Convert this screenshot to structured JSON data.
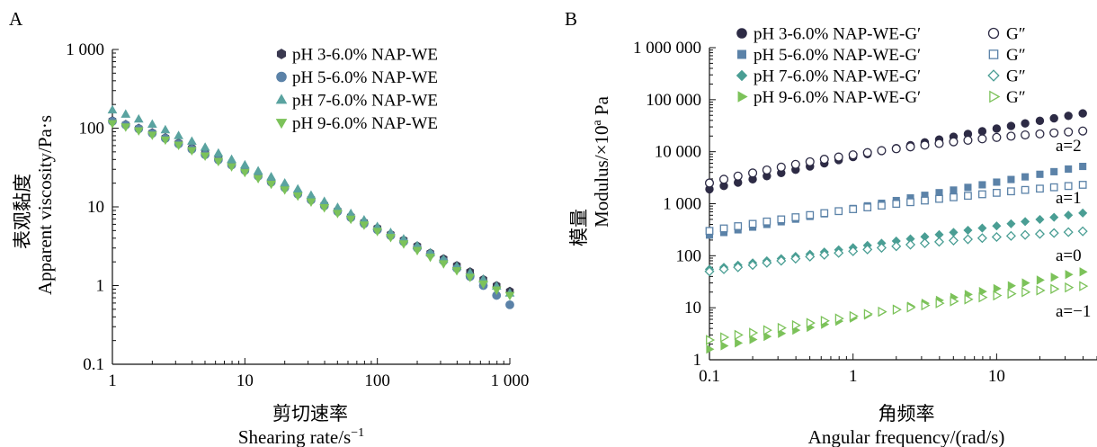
{
  "chart_data": [
    {
      "type": "scatter",
      "panel_label": "A",
      "xlabel_cn": "剪切速率",
      "xlabel": "Shearing rate/s",
      "xlabel_sup": "−1",
      "ylabel_cn": "表观黏度",
      "ylabel": "Apparent viscosity/Pa·s",
      "xscale": "log",
      "yscale": "log",
      "xlim": [
        1,
        1000
      ],
      "ylim": [
        0.1,
        1000
      ],
      "xticks": [
        1,
        10,
        100,
        1000
      ],
      "xticklabels": [
        "1",
        "10",
        "100",
        "1 000"
      ],
      "yticks": [
        0.1,
        1,
        10,
        100,
        1000
      ],
      "yticklabels": [
        "0.1",
        "1",
        "10",
        "100",
        "1 000"
      ],
      "grid": false,
      "legend_position": "top-right",
      "series": [
        {
          "name": "pH 3-6.0% NAP-WE",
          "marker": "hexagon",
          "color": "#3a3950",
          "x": [
            1,
            1.26,
            1.58,
            2,
            2.51,
            3.16,
            3.98,
            5.01,
            6.31,
            7.94,
            10,
            12.6,
            15.8,
            20,
            25.1,
            31.6,
            39.8,
            50.1,
            63.1,
            79.4,
            100,
            126,
            158,
            200,
            251,
            316,
            398,
            501,
            631,
            794,
            1000
          ],
          "y": [
            125,
            112,
            100,
            88,
            76,
            65,
            56,
            48,
            41,
            35,
            30,
            25,
            21,
            18,
            15,
            12.7,
            10.7,
            9,
            7.6,
            6.4,
            5.4,
            4.5,
            3.8,
            3.2,
            2.6,
            2.2,
            1.8,
            1.5,
            1.2,
            1.0,
            0.85
          ]
        },
        {
          "name": "pH 5-6.0% NAP-WE",
          "marker": "circle",
          "color": "#5b82a8",
          "x": [
            1,
            1.26,
            1.58,
            2,
            2.51,
            3.16,
            3.98,
            5.01,
            6.31,
            7.94,
            10,
            12.6,
            15.8,
            20,
            25.1,
            31.6,
            39.8,
            50.1,
            63.1,
            79.4,
            100,
            126,
            158,
            200,
            251,
            316,
            398,
            501,
            631,
            794,
            1000
          ],
          "y": [
            122,
            110,
            98,
            86,
            74,
            63,
            54,
            46,
            39.5,
            34,
            29,
            24.5,
            20.5,
            17.5,
            14.5,
            12.2,
            10.3,
            8.7,
            7.3,
            6.1,
            5.1,
            4.3,
            3.6,
            3.0,
            2.5,
            2.05,
            1.65,
            1.3,
            1.0,
            0.75,
            0.57
          ]
        },
        {
          "name": "pH 7-6.0% NAP-WE",
          "marker": "triangle-up",
          "color": "#5aa3a0",
          "x": [
            1,
            1.26,
            1.58,
            2,
            2.51,
            3.16,
            3.98,
            5.01,
            6.31,
            7.94,
            10,
            12.6,
            15.8,
            20,
            25.1,
            31.6,
            39.8,
            50.1,
            63.1,
            79.4,
            100,
            126,
            158,
            200,
            251,
            316,
            398,
            501,
            631,
            794,
            1000
          ],
          "y": [
            170,
            150,
            130,
            112,
            95,
            80,
            68,
            57,
            48,
            40,
            34,
            28.5,
            24,
            20,
            16.8,
            14,
            11.7,
            9.8,
            8.2,
            6.8,
            5.6,
            4.7,
            3.9,
            3.2,
            2.6,
            2.15,
            1.75,
            1.45,
            1.2,
            0.98,
            0.8
          ]
        },
        {
          "name": "pH 9-6.0% NAP-WE",
          "marker": "triangle-down",
          "color": "#7cc25a",
          "x": [
            1,
            1.26,
            1.58,
            2,
            2.51,
            3.16,
            3.98,
            5.01,
            6.31,
            7.94,
            10,
            12.6,
            15.8,
            20,
            25.1,
            31.6,
            39.8,
            50.1,
            63.1,
            79.4,
            100,
            126,
            158,
            200,
            251,
            316,
            398,
            501,
            631,
            794,
            1000
          ],
          "y": [
            115,
            104,
            93,
            82,
            71,
            61,
            52,
            44.5,
            38,
            32.5,
            27.5,
            23,
            19.5,
            16.5,
            13.8,
            11.6,
            9.8,
            8.3,
            7.0,
            5.9,
            4.9,
            4.1,
            3.4,
            2.8,
            2.3,
            1.9,
            1.55,
            1.28,
            1.05,
            0.88,
            0.75
          ]
        }
      ]
    },
    {
      "type": "scatter",
      "panel_label": "B",
      "xlabel_cn": "角频率",
      "xlabel": "Angular frequency/(rad/s)",
      "ylabel_cn": "模量",
      "ylabel": "Modulus/×10",
      "ylabel_sup": "a",
      "ylabel_unit": " Pa",
      "xscale": "log",
      "yscale": "log",
      "xlim": [
        0.1,
        50
      ],
      "ylim": [
        1,
        1000000
      ],
      "xticks": [
        0.1,
        1,
        10
      ],
      "xticklabels": [
        "0.1",
        "1",
        "10"
      ],
      "yticks": [
        1,
        10,
        100,
        1000,
        10000,
        100000,
        1000000
      ],
      "yticklabels": [
        "1",
        "10",
        "100",
        "1 000",
        "10 000",
        "100 000",
        "1 000 000"
      ],
      "grid": false,
      "legend_position": "top",
      "annotations": [
        "a=2",
        "a=1",
        "a=0",
        "a=−1"
      ],
      "series": [
        {
          "name": "pH 3-6.0% NAP-WE-G′",
          "marker": "circle-filled",
          "color": "#2d2b45",
          "x": [
            0.1,
            0.126,
            0.158,
            0.2,
            0.251,
            0.316,
            0.398,
            0.501,
            0.631,
            0.794,
            1,
            1.26,
            1.58,
            2,
            2.51,
            3.16,
            3.98,
            5.01,
            6.31,
            7.94,
            10,
            12.6,
            15.8,
            20,
            25.1,
            31.6,
            39.8,
            50.1
          ],
          "y": [
            1900,
            2200,
            2550,
            2950,
            3400,
            3900,
            4500,
            5200,
            6000,
            6900,
            7900,
            9000,
            10300,
            11700,
            13300,
            15100,
            17100,
            19400,
            21900,
            24700,
            27800,
            31200,
            35000,
            39200,
            43800,
            48900,
            54500,
            60500
          ]
        },
        {
          "name": "G″",
          "marker": "circle-open",
          "color": "#2d2b45",
          "x": [
            0.1,
            0.126,
            0.158,
            0.2,
            0.251,
            0.316,
            0.398,
            0.501,
            0.631,
            0.794,
            1,
            1.26,
            1.58,
            2,
            2.51,
            3.16,
            3.98,
            5.01,
            6.31,
            7.94,
            10,
            12.6,
            15.8,
            20,
            25.1,
            31.6,
            39.8,
            50.1
          ],
          "y": [
            2500,
            2950,
            3400,
            3900,
            4450,
            5050,
            5700,
            6400,
            7150,
            7900,
            8700,
            9600,
            10500,
            11400,
            12400,
            13400,
            14400,
            15500,
            16600,
            17700,
            18800,
            19900,
            21000,
            22000,
            23000,
            24000,
            25000,
            26000
          ]
        },
        {
          "name": "pH 5-6.0% NAP-WE-G′",
          "marker": "square-filled",
          "color": "#5b82a8",
          "x": [
            0.1,
            0.126,
            0.158,
            0.2,
            0.251,
            0.316,
            0.398,
            0.501,
            0.631,
            0.794,
            1,
            1.26,
            1.58,
            2,
            2.51,
            3.16,
            3.98,
            5.01,
            6.31,
            7.94,
            10,
            12.6,
            15.8,
            20,
            25.1,
            31.6,
            39.8,
            50.1
          ],
          "y": [
            250,
            280,
            315,
            355,
            400,
            450,
            505,
            570,
            640,
            720,
            810,
            910,
            1020,
            1150,
            1290,
            1450,
            1630,
            1830,
            2060,
            2310,
            2600,
            2920,
            3280,
            3680,
            4130,
            4640,
            5210,
            5850
          ]
        },
        {
          "name": "G″",
          "marker": "square-open",
          "color": "#5b82a8",
          "x": [
            0.1,
            0.126,
            0.158,
            0.2,
            0.251,
            0.316,
            0.398,
            0.501,
            0.631,
            0.794,
            1,
            1.26,
            1.58,
            2,
            2.51,
            3.16,
            3.98,
            5.01,
            6.31,
            7.94,
            10,
            12.6,
            15.8,
            20,
            25.1,
            31.6,
            39.8,
            50.1
          ],
          "y": [
            300,
            335,
            370,
            410,
            455,
            500,
            550,
            605,
            660,
            720,
            785,
            850,
            920,
            995,
            1070,
            1150,
            1240,
            1330,
            1420,
            1520,
            1620,
            1730,
            1840,
            1950,
            2070,
            2190,
            2310,
            2440
          ]
        },
        {
          "name": "pH 7-6.0% NAP-WE-G′",
          "marker": "diamond-filled",
          "color": "#4a9e94",
          "x": [
            0.1,
            0.126,
            0.158,
            0.2,
            0.251,
            0.316,
            0.398,
            0.501,
            0.631,
            0.794,
            1,
            1.26,
            1.58,
            2,
            2.51,
            3.16,
            3.98,
            5.01,
            6.31,
            7.94,
            10,
            12.6,
            15.8,
            20,
            25.1,
            31.6,
            39.8,
            50.1
          ],
          "y": [
            55,
            60,
            66,
            73,
            80,
            88,
            97,
            107,
            118,
            130,
            143,
            158,
            174,
            192,
            211,
            232,
            255,
            281,
            309,
            340,
            374,
            412,
            453,
            498,
            548,
            603,
            663,
            730
          ]
        },
        {
          "name": "G″",
          "marker": "diamond-open",
          "color": "#4a9e94",
          "x": [
            0.1,
            0.126,
            0.158,
            0.2,
            0.251,
            0.316,
            0.398,
            0.501,
            0.631,
            0.794,
            1,
            1.26,
            1.58,
            2,
            2.51,
            3.16,
            3.98,
            5.01,
            6.31,
            7.94,
            10,
            12.6,
            15.8,
            20,
            25.1,
            31.6,
            39.8,
            50.1
          ],
          "y": [
            50,
            55,
            60,
            66,
            73,
            80,
            88,
            96,
            104,
            113,
            122,
            132,
            142,
            152,
            163,
            174,
            185,
            196,
            207,
            218,
            229,
            240,
            251,
            262,
            273,
            284,
            295,
            306
          ]
        },
        {
          "name": "pH 9-6.0% NAP-WE-G′",
          "marker": "triangle-right-filled",
          "color": "#7cc25a",
          "x": [
            0.1,
            0.126,
            0.158,
            0.2,
            0.251,
            0.316,
            0.398,
            0.501,
            0.631,
            0.794,
            1,
            1.26,
            1.58,
            2,
            2.51,
            3.16,
            3.98,
            5.01,
            6.31,
            7.94,
            10,
            12.6,
            15.8,
            20,
            25.1,
            31.6,
            39.8,
            50.1
          ],
          "y": [
            1.6,
            1.85,
            2.1,
            2.45,
            2.8,
            3.2,
            3.7,
            4.2,
            4.8,
            5.5,
            6.3,
            7.2,
            8.2,
            9.4,
            10.7,
            12.2,
            13.9,
            15.8,
            18,
            20.5,
            23.3,
            26.5,
            30,
            34,
            38.5,
            43.5,
            49,
            55
          ]
        },
        {
          "name": "G″",
          "marker": "triangle-right-open",
          "color": "#7cc25a",
          "x": [
            0.1,
            0.126,
            0.158,
            0.2,
            0.251,
            0.316,
            0.398,
            0.501,
            0.631,
            0.794,
            1,
            1.26,
            1.58,
            2,
            2.51,
            3.16,
            3.98,
            5.01,
            6.31,
            7.94,
            10,
            12.6,
            15.8,
            20,
            25.1,
            31.6,
            39.8,
            50.1
          ],
          "y": [
            2.4,
            2.7,
            3.0,
            3.3,
            3.7,
            4.1,
            4.6,
            5.1,
            5.6,
            6.2,
            6.9,
            7.6,
            8.4,
            9.2,
            10.1,
            11.1,
            12.2,
            13.3,
            14.5,
            15.8,
            17.2,
            18.6,
            20,
            21.5,
            23,
            24.5,
            26,
            27.5
          ]
        }
      ]
    }
  ]
}
